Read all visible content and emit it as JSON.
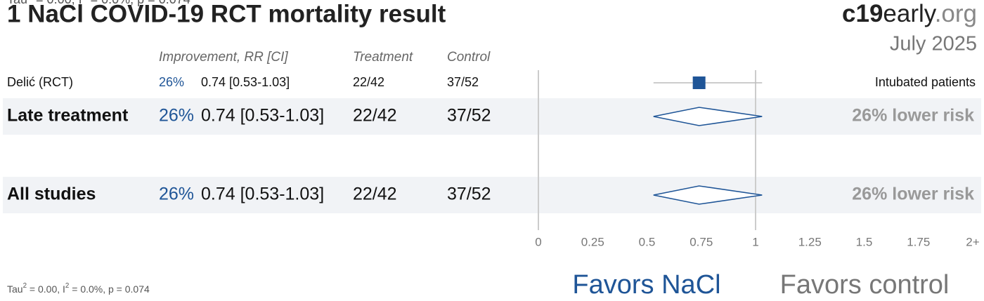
{
  "chart_data": {
    "type": "forest",
    "title": "1 NaCl COVID-19 RCT mortality result",
    "brand": [
      "c19",
      "early",
      ".org"
    ],
    "date": "July 2025",
    "columns": [
      "Improvement, RR [CI]",
      "Treatment",
      "Control"
    ],
    "rows": [
      {
        "kind": "study",
        "label": "Delić (RCT)",
        "improvement": "26%",
        "rr": 0.74,
        "ci_low": 0.53,
        "ci_high": 1.03,
        "rr_label": "0.74 [0.53-1.03]",
        "treatment": "22/42",
        "control": "37/52",
        "note": "Intubated patients"
      },
      {
        "kind": "summary",
        "label": "Late treatment",
        "improvement": "26%",
        "rr": 0.74,
        "ci_low": 0.53,
        "ci_high": 1.03,
        "rr_label": "0.74 [0.53-1.03]",
        "treatment": "22/42",
        "control": "37/52",
        "note": "26% lower risk",
        "heterogeneity": [
          "Tau",
          "2",
          " = 0.00, I",
          "2",
          " = 0.0%, p = 0.074"
        ]
      },
      {
        "kind": "summary",
        "label": "All studies",
        "improvement": "26%",
        "rr": 0.74,
        "ci_low": 0.53,
        "ci_high": 1.03,
        "rr_label": "0.74 [0.53-1.03]",
        "treatment": "22/42",
        "control": "37/52",
        "note": "26% lower risk",
        "heterogeneity": [
          "Tau",
          "2",
          " = 0.00, I",
          "2",
          " = 0.0%, p = 0.074"
        ]
      }
    ],
    "xlim": [
      0,
      2
    ],
    "xticks": [
      0,
      0.25,
      0.5,
      0.75,
      1,
      1.25,
      1.5,
      1.75,
      {
        "value": 2,
        "label": "2+"
      }
    ],
    "ref_line": 1,
    "favors": [
      "Favors NaCl",
      "Favors control"
    ],
    "color": "#1f5597"
  }
}
